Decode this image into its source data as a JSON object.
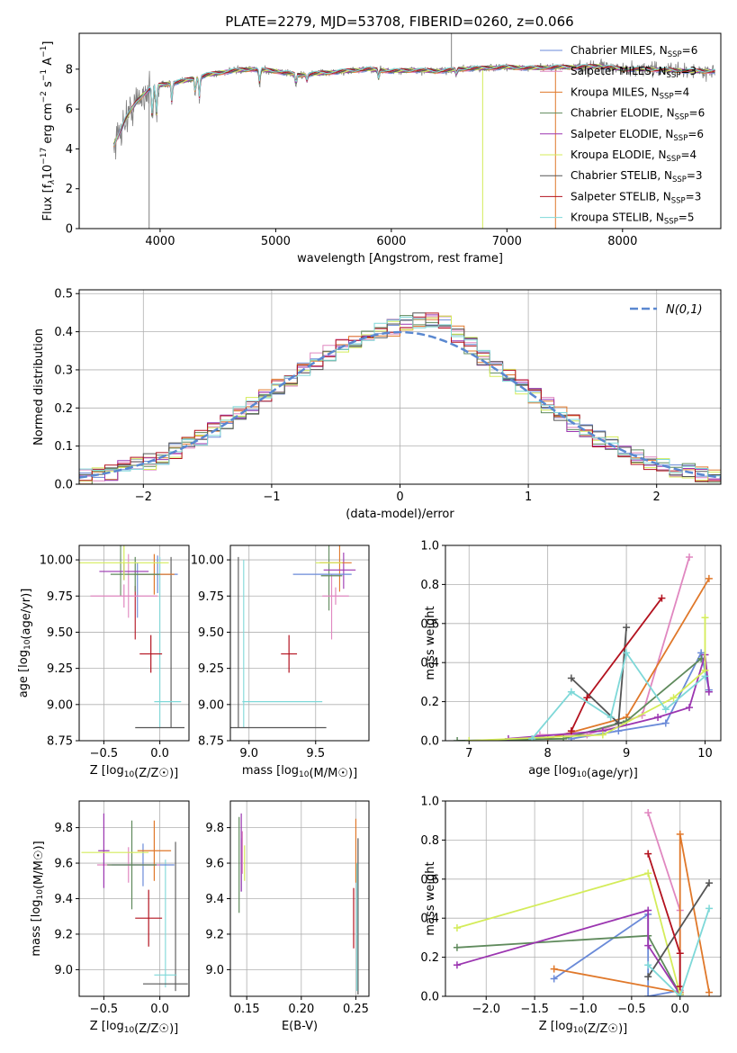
{
  "title": "PLATE=2279, MJD=53708, FIBERID=0260, z=0.066",
  "series_styles": [
    {
      "name": "Chabrier MILES",
      "label_html": [
        "Chabrier MILES, N",
        "SSP",
        "=6"
      ],
      "color": "#6a8ad8"
    },
    {
      "name": "Salpeter MILES",
      "label_html": [
        "Salpeter MILES, N",
        "SSP",
        "=3"
      ],
      "color": "#e087c0"
    },
    {
      "name": "Kroupa MILES",
      "label_html": [
        "Kroupa MILES, N",
        "SSP",
        "=4"
      ],
      "color": "#e0782a"
    },
    {
      "name": "Chabrier ELODIE",
      "label_html": [
        "Chabrier ELODIE, N",
        "SSP",
        "=6"
      ],
      "color": "#5f8a5c"
    },
    {
      "name": "Salpeter ELODIE",
      "label_html": [
        "Salpeter ELODIE, N",
        "SSP",
        "=6"
      ],
      "color": "#9b35b0"
    },
    {
      "name": "Kroupa ELODIE",
      "label_html": [
        "Kroupa ELODIE, N",
        "SSP",
        "=4"
      ],
      "color": "#d4ec5a"
    },
    {
      "name": "Chabrier STELIB",
      "label_html": [
        "Chabrier STELIB, N",
        "SSP",
        "=3"
      ],
      "color": "#555555"
    },
    {
      "name": "Salpeter STELIB",
      "label_html": [
        "Salpeter STELIB, N",
        "SSP",
        "=3"
      ],
      "color": "#b3121f"
    },
    {
      "name": "Kroupa STELIB",
      "label_html": [
        "Kroupa STELIB, N",
        "SSP",
        "=5"
      ],
      "color": "#7ed8d8"
    }
  ],
  "chart_data": [
    {
      "id": "spectrum",
      "type": "line",
      "xlabel": "wavelength [Angstrom, rest frame]",
      "ylabel_parts": [
        "Flux [f",
        "λ",
        "10",
        "−17",
        " erg cm",
        "−2",
        " s",
        "−1",
        " A",
        "−1",
        "]"
      ],
      "xlim": [
        3300,
        8850
      ],
      "ylim": [
        0,
        9.8
      ],
      "xticks": [
        4000,
        5000,
        6000,
        7000,
        8000
      ],
      "yticks": [
        0,
        2,
        4,
        6,
        8
      ],
      "data_color": "#808080",
      "continuum": [
        [
          3600,
          4.2
        ],
        [
          3700,
          5.5
        ],
        [
          3800,
          6.4
        ],
        [
          3900,
          7.0
        ],
        [
          4000,
          7.2
        ],
        [
          4200,
          7.4
        ],
        [
          4400,
          7.7
        ],
        [
          4600,
          7.9
        ],
        [
          4800,
          8.0
        ],
        [
          5000,
          7.9
        ],
        [
          5200,
          7.7
        ],
        [
          5400,
          7.8
        ],
        [
          5600,
          7.9
        ],
        [
          5800,
          8.0
        ],
        [
          6000,
          7.9
        ],
        [
          6200,
          7.95
        ],
        [
          6400,
          7.9
        ],
        [
          6600,
          8.0
        ],
        [
          6800,
          8.05
        ],
        [
          7000,
          8.1
        ],
        [
          7200,
          8.05
        ],
        [
          7400,
          8.1
        ],
        [
          7600,
          8.1
        ],
        [
          7800,
          8.15
        ],
        [
          8000,
          8.0
        ],
        [
          8200,
          8.0
        ],
        [
          8400,
          7.95
        ],
        [
          8600,
          7.9
        ],
        [
          8800,
          7.9
        ]
      ],
      "absorption_dips": [
        [
          3933,
          3.2
        ],
        [
          3968,
          3.0
        ],
        [
          4101,
          1.8
        ],
        [
          4304,
          1.5
        ],
        [
          4340,
          2.0
        ],
        [
          4861,
          1.4
        ],
        [
          5175,
          1.0
        ],
        [
          5270,
          0.6
        ],
        [
          5890,
          0.8
        ],
        [
          6563,
          0.5
        ]
      ],
      "spikes": [
        [
          3905,
          0.0
        ],
        [
          6790,
          0.0
        ],
        [
          7420,
          0.0
        ],
        [
          6520,
          9.8
        ]
      ]
    },
    {
      "id": "residuals",
      "type": "histogram",
      "xlabel": "(data-model)/error",
      "ylabel": "Normed distribution",
      "xlim": [
        -2.5,
        2.5
      ],
      "ylim": [
        0,
        0.51
      ],
      "xticks": [
        -2,
        -1,
        0,
        1,
        2
      ],
      "yticks": [
        0.0,
        0.1,
        0.2,
        0.3,
        0.4,
        0.5
      ],
      "bin_width": 0.1,
      "reference_label": "N(0,1)",
      "reference_color": "#5a88d0"
    },
    {
      "id": "age_vs_Z",
      "type": "errorbar",
      "xlabel": "Z [log10(Z/Z☉)]",
      "ylabel": "age  [log10(age/yr)]",
      "xlim": [
        -0.72,
        0.26
      ],
      "ylim": [
        8.75,
        10.1
      ],
      "xticks": [
        -0.5,
        0.0
      ],
      "yticks": [
        8.75,
        9.0,
        9.25,
        9.5,
        9.75,
        10.0
      ],
      "points": [
        {
          "s": 0,
          "x": -0.02,
          "y": 9.9,
          "xerr": 0.18,
          "yerr": 0.13
        },
        {
          "s": 1,
          "x": -0.32,
          "y": 9.75,
          "xerr": 0.3,
          "yerr": 0.08
        },
        {
          "s": 2,
          "x": -0.05,
          "y": 9.9,
          "xerr": 0.18,
          "yerr": 0.14
        },
        {
          "s": 3,
          "x": -0.22,
          "y": 9.9,
          "xerr": 0.22,
          "yerr": 0.12
        },
        {
          "s": 4,
          "x": -0.32,
          "y": 9.92,
          "xerr": 0.22,
          "yerr": 0.06
        },
        {
          "s": 5,
          "x": -0.32,
          "y": 9.98,
          "xerr": 0.4,
          "yerr": 0.12
        },
        {
          "s": 6,
          "x": 0.0,
          "y": 8.84,
          "xerr": 0.22,
          "yerr": 0.0
        },
        {
          "s": 7,
          "x": -0.08,
          "y": 9.35,
          "xerr": 0.1,
          "yerr": 0.13
        },
        {
          "s": 8,
          "x": 0.07,
          "y": 9.02,
          "xerr": 0.12,
          "yerr": 0.0
        }
      ],
      "vbars": [
        {
          "s": 6,
          "x": 0.1,
          "y0": 8.84,
          "y1": 10.02
        },
        {
          "s": 8,
          "x": 0.0,
          "y0": 8.84,
          "y1": 10.02
        },
        {
          "s": 0,
          "x": -0.2,
          "y0": 9.6,
          "y1": 9.98
        },
        {
          "s": 1,
          "x": -0.28,
          "y0": 9.6,
          "y1": 10.04
        },
        {
          "s": 3,
          "x": -0.35,
          "y0": 9.75,
          "y1": 10.13
        },
        {
          "s": 7,
          "x": -0.22,
          "y0": 9.45,
          "y1": 9.82
        }
      ]
    },
    {
      "id": "age_vs_mass",
      "type": "errorbar",
      "xlabel": "mass [log10(M/M☉)]",
      "ylabel": "",
      "xlim": [
        8.86,
        9.9
      ],
      "ylim": [
        8.75,
        10.1
      ],
      "xticks": [
        9.0,
        9.5
      ],
      "yticks": [
        8.75,
        9.0,
        9.25,
        9.5,
        9.75,
        10.0
      ],
      "points": [
        {
          "s": 0,
          "x": 9.55,
          "y": 9.9,
          "xerr": 0.22,
          "yerr": 0.0
        },
        {
          "s": 1,
          "x": 9.65,
          "y": 9.75,
          "xerr": 0.1,
          "yerr": 0.06
        },
        {
          "s": 2,
          "x": 9.65,
          "y": 9.98,
          "xerr": 0.12,
          "yerr": 0.0
        },
        {
          "s": 3,
          "x": 9.62,
          "y": 9.89,
          "xerr": 0.08,
          "yerr": 0.0
        },
        {
          "s": 4,
          "x": 9.68,
          "y": 9.93,
          "xerr": 0.12,
          "yerr": 0.0
        },
        {
          "s": 5,
          "x": 9.6,
          "y": 9.98,
          "xerr": 0.1,
          "yerr": 0.0
        },
        {
          "s": 6,
          "x": 9.22,
          "y": 8.84,
          "xerr": 0.36,
          "yerr": 0.0
        },
        {
          "s": 7,
          "x": 9.3,
          "y": 9.35,
          "xerr": 0.06,
          "yerr": 0.13
        },
        {
          "s": 8,
          "x": 9.25,
          "y": 9.02,
          "xerr": 0.3,
          "yerr": 0.0
        }
      ],
      "vbars": [
        {
          "s": 6,
          "x": 8.92,
          "y0": 8.84,
          "y1": 10.02
        },
        {
          "s": 8,
          "x": 8.96,
          "y0": 8.84,
          "y1": 10.0
        },
        {
          "s": 3,
          "x": 9.6,
          "y0": 9.65,
          "y1": 10.13
        },
        {
          "s": 1,
          "x": 9.62,
          "y0": 9.45,
          "y1": 9.9
        },
        {
          "s": 2,
          "x": 9.68,
          "y0": 9.78,
          "y1": 10.1
        },
        {
          "s": 4,
          "x": 9.71,
          "y0": 9.8,
          "y1": 10.05
        }
      ]
    },
    {
      "id": "weight_vs_age",
      "type": "line-markers",
      "xlabel": "age  [log10(age/yr)]",
      "ylabel": "mass weight",
      "xlim": [
        6.7,
        10.2
      ],
      "ylim": [
        0,
        1.0
      ],
      "xticks": [
        7,
        8,
        9,
        10
      ],
      "yticks": [
        0.0,
        0.2,
        0.4,
        0.6,
        0.8,
        1.0
      ],
      "lines": [
        {
          "s": 0,
          "points": [
            [
              8.3,
              0.01
            ],
            [
              8.9,
              0.05
            ],
            [
              9.5,
              0.09
            ],
            [
              9.95,
              0.45
            ],
            [
              10.05,
              0.26
            ]
          ]
        },
        {
          "s": 1,
          "points": [
            [
              7.9,
              0.03
            ],
            [
              8.5,
              0.03
            ],
            [
              9.2,
              0.13
            ],
            [
              9.8,
              0.94
            ]
          ]
        },
        {
          "s": 2,
          "points": [
            [
              8.0,
              0.01
            ],
            [
              9.0,
              0.12
            ],
            [
              10.05,
              0.83
            ]
          ]
        },
        {
          "s": 3,
          "points": [
            [
              6.85,
              0.0
            ],
            [
              8.2,
              0.01
            ],
            [
              9.0,
              0.1
            ],
            [
              9.95,
              0.42
            ]
          ]
        },
        {
          "s": 4,
          "points": [
            [
              7.5,
              0.01
            ],
            [
              8.7,
              0.05
            ],
            [
              9.4,
              0.12
            ],
            [
              9.8,
              0.17
            ],
            [
              10.0,
              0.44
            ],
            [
              10.05,
              0.25
            ]
          ]
        },
        {
          "s": 5,
          "points": [
            [
              7.0,
              0.0
            ],
            [
              8.7,
              0.03
            ],
            [
              9.6,
              0.22
            ],
            [
              10.0,
              0.36
            ],
            [
              10.0,
              0.63
            ]
          ]
        },
        {
          "s": 6,
          "points": [
            [
              8.3,
              0.32
            ],
            [
              8.9,
              0.09
            ],
            [
              9.0,
              0.58
            ]
          ]
        },
        {
          "s": 7,
          "points": [
            [
              8.3,
              0.05
            ],
            [
              8.5,
              0.22
            ],
            [
              9.45,
              0.73
            ]
          ]
        },
        {
          "s": 8,
          "points": [
            [
              7.8,
              0.01
            ],
            [
              8.3,
              0.25
            ],
            [
              8.8,
              0.12
            ],
            [
              9.0,
              0.45
            ],
            [
              9.5,
              0.16
            ],
            [
              10.0,
              0.33
            ]
          ]
        }
      ]
    },
    {
      "id": "mass_vs_Z",
      "type": "errorbar",
      "xlabel": "Z [log10(Z/Z☉)]",
      "ylabel": "mass [log10(M/M☉)]",
      "xlim": [
        -0.72,
        0.26
      ],
      "ylim": [
        8.85,
        9.95
      ],
      "xticks": [
        -0.5,
        0.0
      ],
      "yticks": [
        9.0,
        9.2,
        9.4,
        9.6,
        9.8
      ],
      "points": [
        {
          "s": 0,
          "x": -0.15,
          "y": 9.59,
          "xerr": 0.28,
          "yerr": 0.12
        },
        {
          "s": 1,
          "x": -0.28,
          "y": 9.59,
          "xerr": 0.28,
          "yerr": 0.1
        },
        {
          "s": 2,
          "x": -0.05,
          "y": 9.67,
          "xerr": 0.15,
          "yerr": 0.17
        },
        {
          "s": 3,
          "x": -0.25,
          "y": 9.59,
          "xerr": 0.22,
          "yerr": 0.25
        },
        {
          "s": 4,
          "x": -0.5,
          "y": 9.67,
          "xerr": 0.05,
          "yerr": 0.21
        },
        {
          "s": 5,
          "x": -0.4,
          "y": 9.66,
          "xerr": 0.3,
          "yerr": 0.0
        },
        {
          "s": 6,
          "x": 0.05,
          "y": 8.92,
          "xerr": 0.2,
          "yerr": 0.0
        },
        {
          "s": 7,
          "x": -0.1,
          "y": 9.29,
          "xerr": 0.12,
          "yerr": 0.16
        },
        {
          "s": 8,
          "x": 0.05,
          "y": 8.97,
          "xerr": 0.1,
          "yerr": 0.0
        }
      ],
      "vbars": [
        {
          "s": 6,
          "x": 0.14,
          "y0": 8.88,
          "y1": 9.72
        },
        {
          "s": 8,
          "x": 0.05,
          "y0": 8.9,
          "y1": 9.62
        }
      ]
    },
    {
      "id": "mass_vs_ebv",
      "type": "errorbar",
      "xlabel": "E(B-V)",
      "ylabel": "",
      "xlim": [
        0.135,
        0.262
      ],
      "ylim": [
        8.85,
        9.95
      ],
      "xticks": [
        0.15,
        0.2,
        0.25
      ],
      "yticks": [
        9.0,
        9.2,
        9.4,
        9.6,
        9.8
      ],
      "points": [
        {
          "s": 0,
          "x": 0.145,
          "y": 9.59,
          "xerr": 0.0,
          "yerr": 0.15
        },
        {
          "s": 1,
          "x": 0.146,
          "y": 9.66,
          "xerr": 0.0,
          "yerr": 0.12
        },
        {
          "s": 3,
          "x": 0.143,
          "y": 9.59,
          "xerr": 0.0,
          "yerr": 0.27
        },
        {
          "s": 4,
          "x": 0.145,
          "y": 9.66,
          "xerr": 0.0,
          "yerr": 0.22
        },
        {
          "s": 5,
          "x": 0.148,
          "y": 9.6,
          "xerr": 0.0,
          "yerr": 0.1
        },
        {
          "s": 2,
          "x": 0.25,
          "y": 9.67,
          "xerr": 0.0,
          "yerr": 0.18
        },
        {
          "s": 6,
          "x": 0.252,
          "y": 9.3,
          "xerr": 0.0,
          "yerr": 0.44
        },
        {
          "s": 7,
          "x": 0.248,
          "y": 9.29,
          "xerr": 0.0,
          "yerr": 0.17
        },
        {
          "s": 8,
          "x": 0.251,
          "y": 9.24,
          "xerr": 0.0,
          "yerr": 0.36
        }
      ],
      "vbars": []
    },
    {
      "id": "weight_vs_Z",
      "type": "line-markers",
      "xlabel": "Z [log10(Z/Z☉)]",
      "ylabel": "mass weight",
      "xlim": [
        -2.42,
        0.42
      ],
      "ylim": [
        0,
        1.0
      ],
      "xticks": [
        -2.0,
        -1.5,
        -1.0,
        -0.5,
        0.0
      ],
      "yticks": [
        0.0,
        0.2,
        0.4,
        0.6,
        0.8,
        1.0
      ],
      "lines": [
        {
          "s": 0,
          "points": [
            [
              -1.3,
              0.09
            ],
            [
              -0.33,
              0.42
            ],
            [
              -0.33,
              0.0
            ],
            [
              0.0,
              0.03
            ]
          ]
        },
        {
          "s": 1,
          "points": [
            [
              -0.33,
              0.94
            ],
            [
              0.0,
              0.44
            ],
            [
              0.0,
              0.03
            ]
          ]
        },
        {
          "s": 2,
          "points": [
            [
              -1.3,
              0.14
            ],
            [
              0.0,
              0.02
            ],
            [
              0.0,
              0.83
            ],
            [
              0.3,
              0.02
            ]
          ]
        },
        {
          "s": 3,
          "points": [
            [
              -2.3,
              0.25
            ],
            [
              -0.33,
              0.31
            ],
            [
              0.0,
              0.01
            ]
          ]
        },
        {
          "s": 4,
          "points": [
            [
              -2.3,
              0.16
            ],
            [
              -0.33,
              0.44
            ],
            [
              -0.33,
              0.26
            ],
            [
              0.0,
              0.01
            ]
          ]
        },
        {
          "s": 5,
          "points": [
            [
              -2.3,
              0.35
            ],
            [
              -0.33,
              0.63
            ],
            [
              0.0,
              0.01
            ]
          ]
        },
        {
          "s": 6,
          "points": [
            [
              -0.33,
              0.1
            ],
            [
              0.3,
              0.58
            ]
          ]
        },
        {
          "s": 7,
          "points": [
            [
              -0.33,
              0.73
            ],
            [
              0.0,
              0.22
            ],
            [
              0.0,
              0.05
            ]
          ]
        },
        {
          "s": 8,
          "points": [
            [
              -0.33,
              0.16
            ],
            [
              0.0,
              0.0
            ],
            [
              0.3,
              0.45
            ]
          ]
        }
      ]
    }
  ]
}
